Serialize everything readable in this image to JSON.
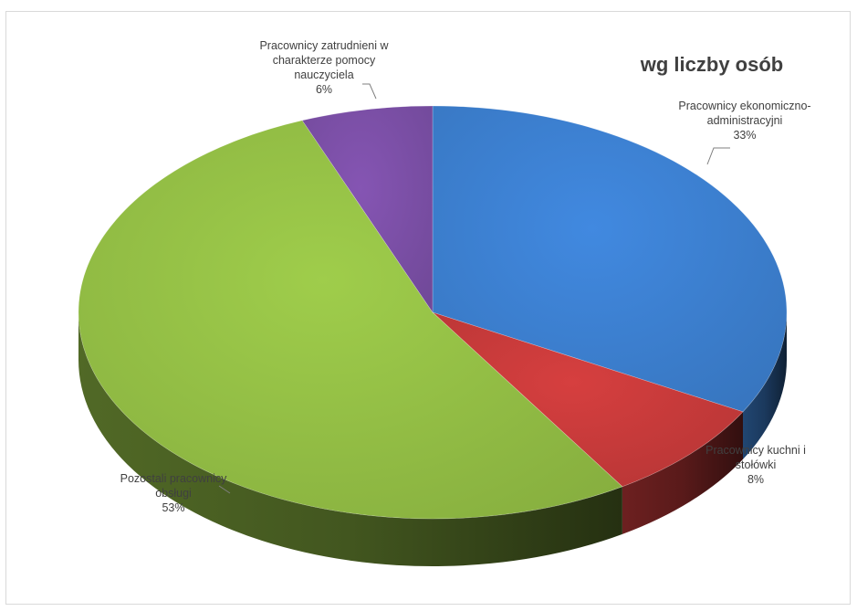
{
  "chart_data": {
    "type": "pie",
    "style": "3d",
    "title": "wg liczby osób",
    "slices": [
      {
        "label": "Pracownicy ekonomiczno-administracyjni",
        "value": 33,
        "value_label": "33%",
        "color": "#3c7fcf"
      },
      {
        "label": "Pracownicy kuchni i stołówki",
        "value": 8,
        "value_label": "8%",
        "color": "#c63a3a"
      },
      {
        "label": "Pozostali pracownicy obsługi",
        "value": 53,
        "value_label": "53%",
        "color": "#93be45"
      },
      {
        "label": "Pracownicy zatrudnieni w charakterze pomocy nauczyciela",
        "value": 6,
        "value_label": "6%",
        "color": "#7b4fa6"
      }
    ],
    "label_lines": [
      [
        "Pracownicy ekonomiczno-",
        "administracyjni",
        "33%"
      ],
      [
        "Pracownicy kuchni i",
        "stołówki",
        "8%"
      ],
      [
        "Pozostali pracownicy",
        "obsługi",
        "53%"
      ],
      [
        "Pracownicy zatrudnieni w",
        "charakterze pomocy",
        "nauczyciela",
        "6%"
      ]
    ]
  }
}
